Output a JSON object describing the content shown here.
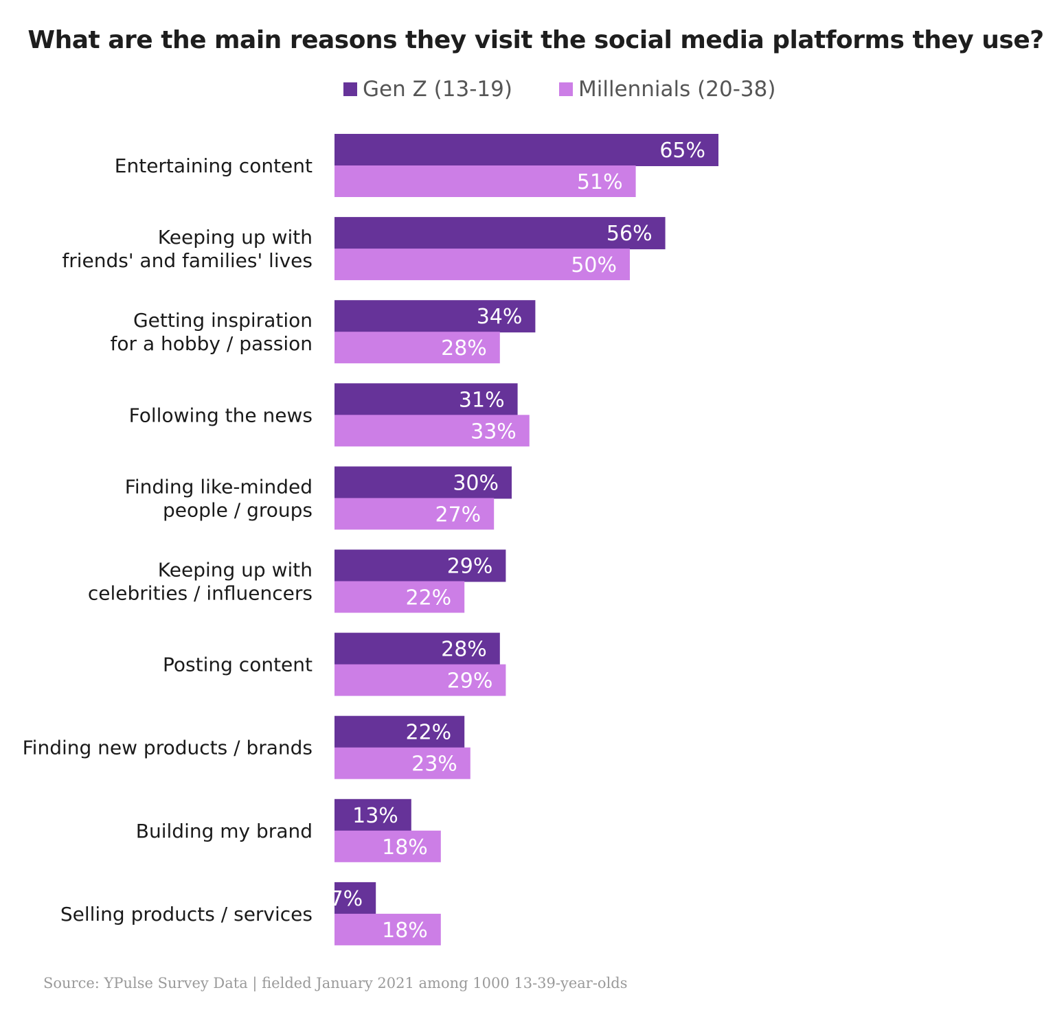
{
  "chart_data": {
    "type": "bar",
    "orientation": "horizontal",
    "title": "What are the main reasons they visit the social media platforms they use?",
    "categories": [
      [
        "Entertaining content"
      ],
      [
        "Keeping up with",
        "friends' and families' lives"
      ],
      [
        "Getting inspiration",
        "for a hobby / passion"
      ],
      [
        "Following the news"
      ],
      [
        "Finding like-minded",
        "people / groups"
      ],
      [
        "Keeping up with",
        "celebrities / influencers"
      ],
      [
        "Posting content"
      ],
      [
        "Finding new products / brands"
      ],
      [
        "Building my brand"
      ],
      [
        "Selling products / services"
      ]
    ],
    "series": [
      {
        "name": "Gen Z (13-19)",
        "color": "#663399",
        "values": [
          65,
          56,
          34,
          31,
          30,
          29,
          28,
          22,
          13,
          7
        ]
      },
      {
        "name": "Millennials (20-38)",
        "color": "#cc7ee6",
        "values": [
          51,
          50,
          28,
          33,
          27,
          22,
          29,
          23,
          18,
          18
        ]
      }
    ],
    "value_suffix": "%",
    "xlim": [
      0,
      100
    ],
    "grid": false,
    "legend_position": "top",
    "source": "Source: YPulse Survey Data | fielded January 2021 among 1000 13-39-year-olds"
  }
}
